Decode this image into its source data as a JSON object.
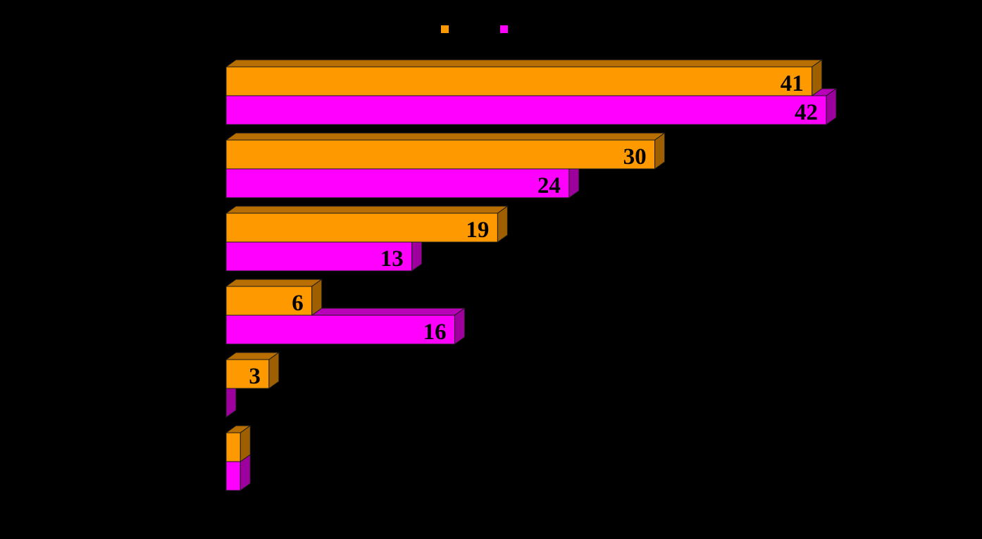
{
  "chart_data": {
    "type": "bar",
    "orientation": "horizontal",
    "style": "3d",
    "title": "",
    "xlabel": "",
    "ylabel": "",
    "xlim": [
      0,
      42
    ],
    "grid": false,
    "legend_position": "top-center",
    "background": "#000000",
    "series": [
      {
        "color": "#FF9900",
        "values": [
          41,
          30,
          19,
          6,
          3,
          1
        ],
        "labels": [
          "41",
          "30",
          "19",
          "6",
          "3",
          ""
        ]
      },
      {
        "color": "#FF00FF",
        "values": [
          42,
          24,
          13,
          16,
          0,
          1
        ],
        "labels": [
          "42",
          "24",
          "13",
          "16",
          "",
          ""
        ]
      }
    ]
  }
}
